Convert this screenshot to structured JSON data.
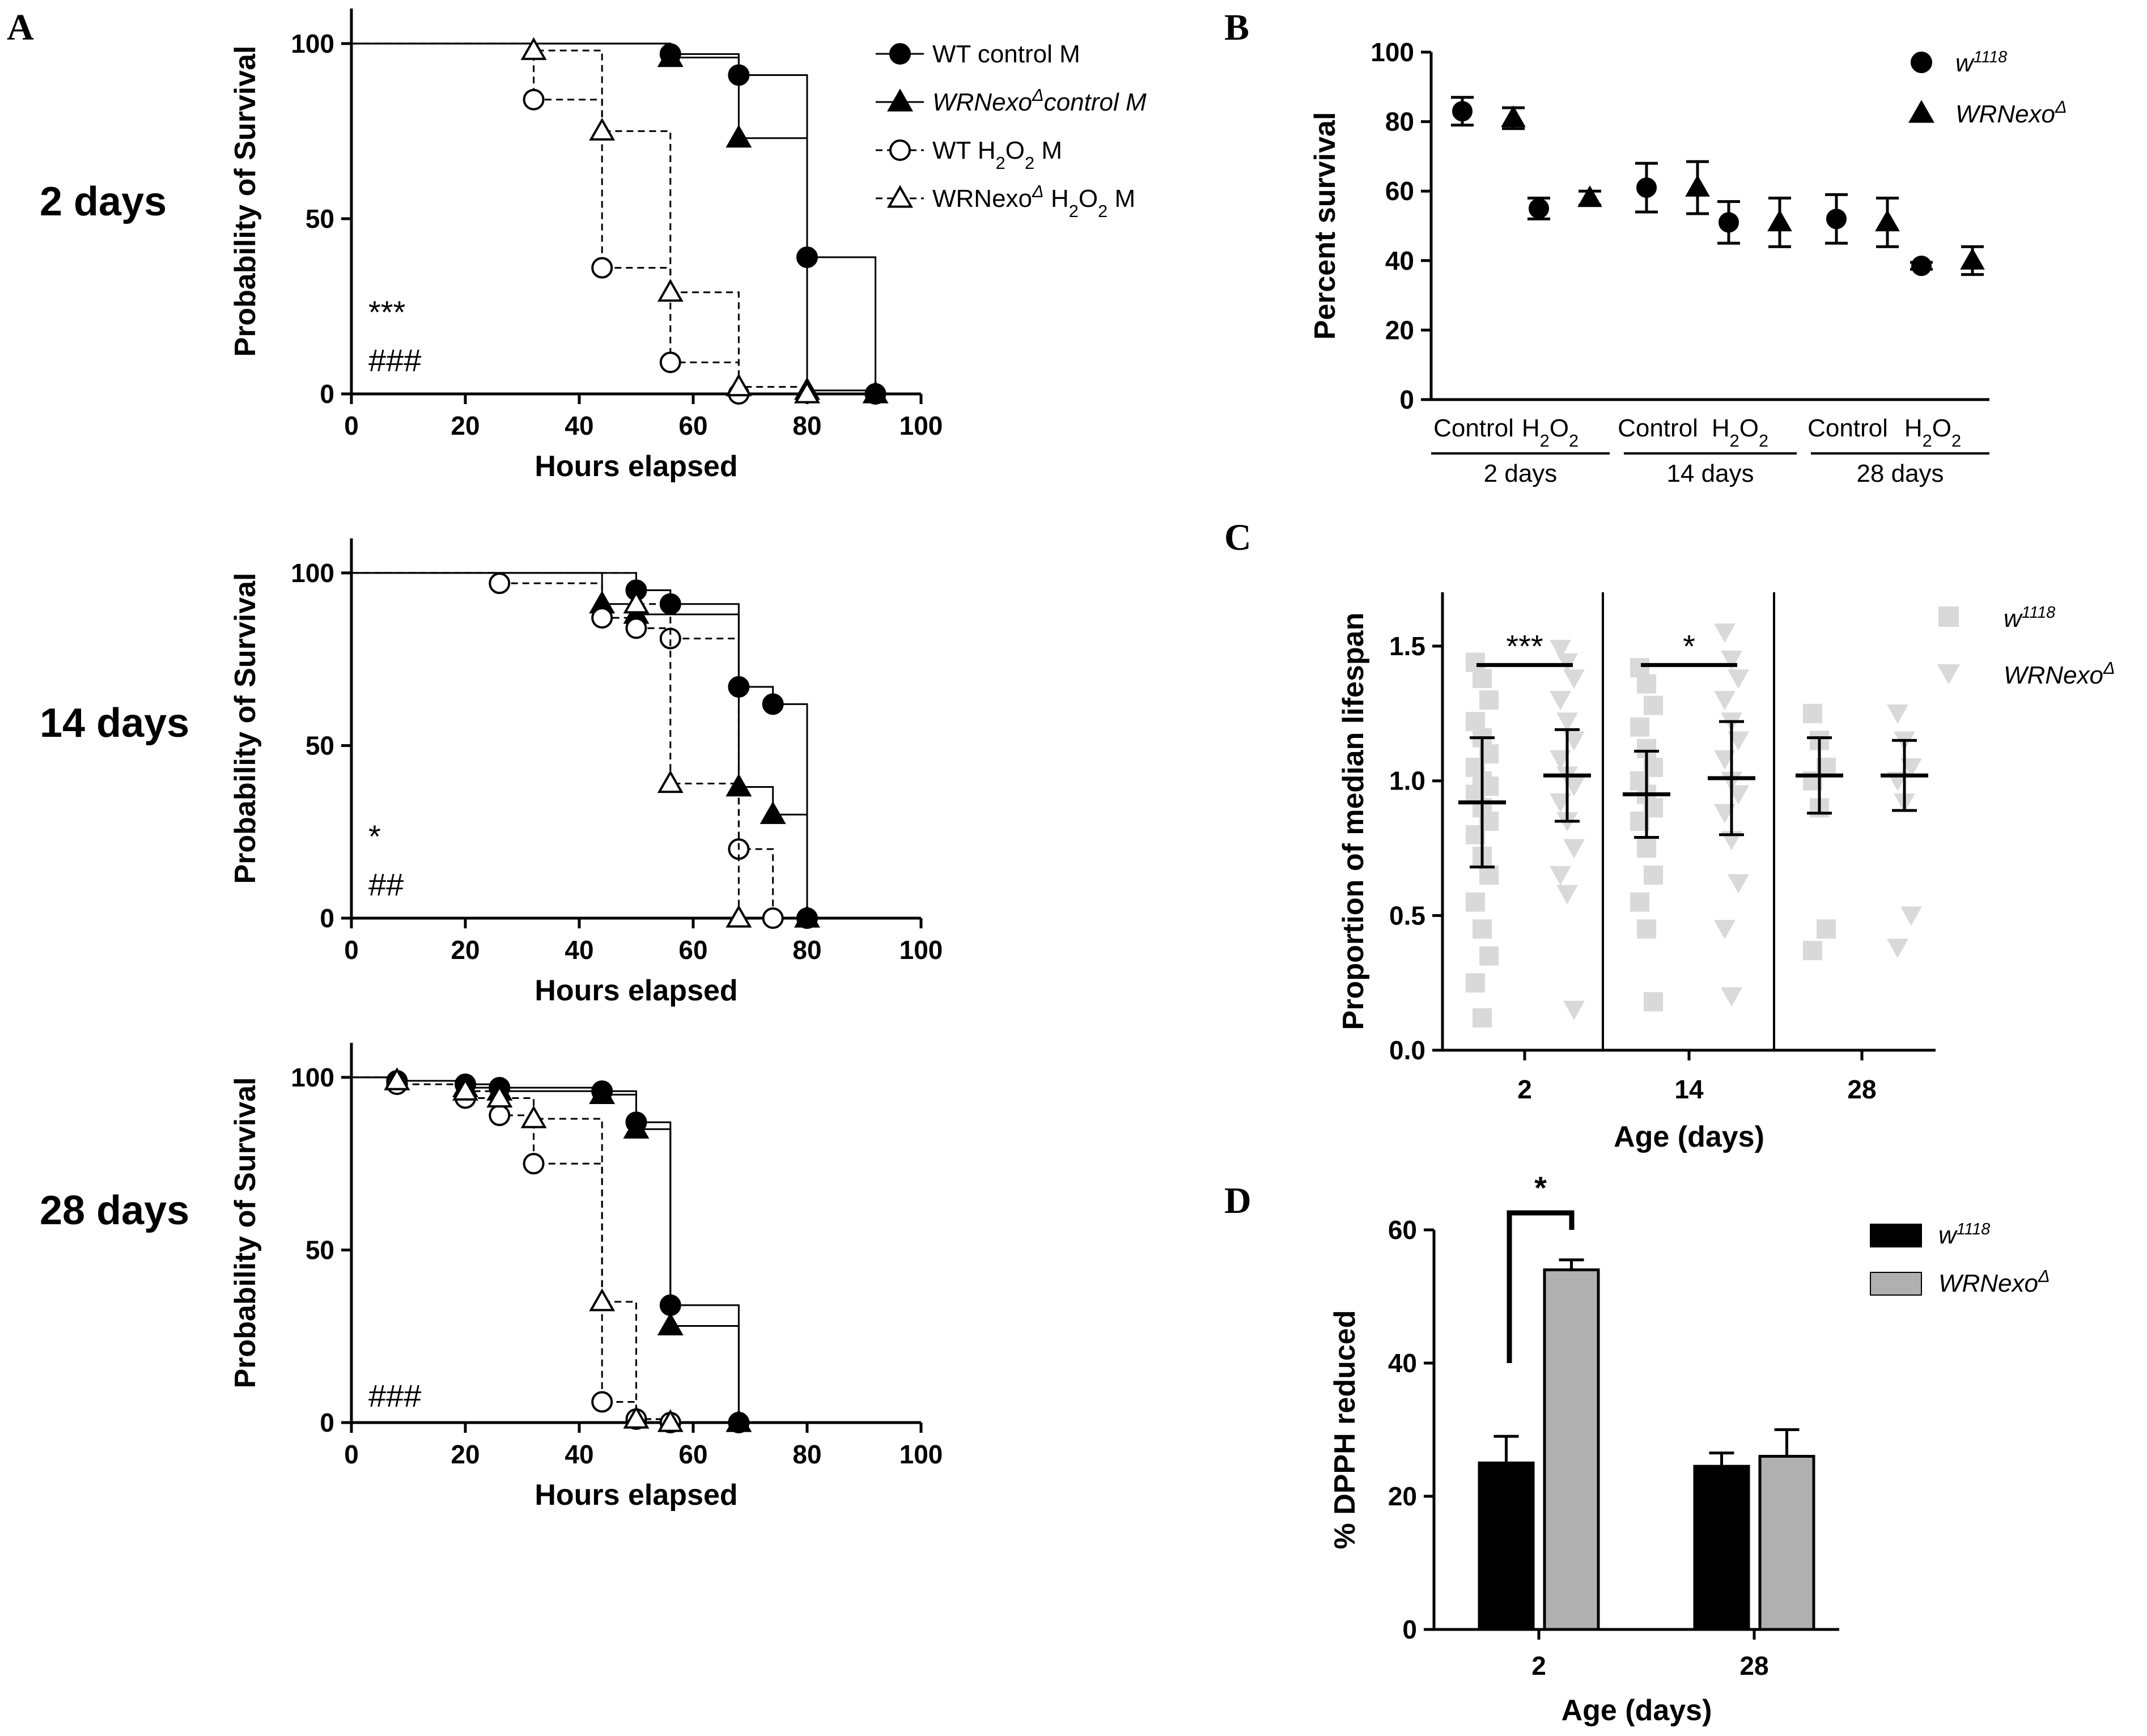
{
  "panel_a": {
    "panel_label": "A",
    "legend": [
      {
        "text": "WT control M",
        "marker": "circle-filled",
        "dashed": false
      },
      {
        "text": "WRNexoΔcontrol M",
        "marker": "triangle-filled",
        "dashed": false,
        "italic": true
      },
      {
        "text": "WT H2O2 M",
        "marker": "circle-open",
        "dashed": true
      },
      {
        "text": "WRNexoΔ H2O2 M",
        "marker": "triangle-open",
        "dashed": true
      }
    ],
    "charts": [
      {
        "row_label": "2 days",
        "chart_data": {
          "type": "line",
          "title": "",
          "xlabel": "Hours elapsed",
          "ylabel": "Probability of Survival",
          "xlim": [
            0,
            100
          ],
          "ylim": [
            0,
            110
          ],
          "xticks": [
            0,
            20,
            40,
            60,
            80,
            100
          ],
          "yticks": [
            0,
            50,
            100
          ],
          "annotations": [
            "***",
            "###"
          ],
          "series": [
            {
              "name": "WT control M",
              "x": [
                0,
                56,
                68,
                80,
                92
              ],
              "y": [
                100,
                97,
                91,
                39,
                0
              ]
            },
            {
              "name": "WRNexoΔcontrol M",
              "x": [
                0,
                56,
                68,
                80,
                92
              ],
              "y": [
                100,
                96,
                73,
                1,
                0
              ]
            },
            {
              "name": "WT H2O2 M",
              "x": [
                0,
                32,
                44,
                56,
                68
              ],
              "y": [
                100,
                84,
                36,
                9,
                0
              ]
            },
            {
              "name": "WRNexoΔ H2O2 M",
              "x": [
                0,
                32,
                44,
                56,
                68,
                80
              ],
              "y": [
                100,
                98,
                75,
                29,
                2,
                0
              ]
            }
          ]
        }
      },
      {
        "row_label": "14 days",
        "chart_data": {
          "type": "line",
          "title": "",
          "xlabel": "Hours elapsed",
          "ylabel": "Probability of Survival",
          "xlim": [
            0,
            100
          ],
          "ylim": [
            0,
            110
          ],
          "xticks": [
            0,
            20,
            40,
            60,
            80,
            100
          ],
          "yticks": [
            0,
            50,
            100
          ],
          "annotations": [
            "*",
            "##"
          ],
          "series": [
            {
              "name": "WT control M",
              "x": [
                0,
                50,
                56,
                68,
                74,
                80
              ],
              "y": [
                100,
                95,
                91,
                67,
                62,
                0
              ]
            },
            {
              "name": "WRNexoΔcontrol M",
              "x": [
                0,
                44,
                50,
                68,
                74,
                80
              ],
              "y": [
                100,
                91,
                88,
                38,
                30,
                0
              ]
            },
            {
              "name": "WT H2O2 M",
              "x": [
                0,
                26,
                44,
                50,
                56,
                68,
                74
              ],
              "y": [
                100,
                97,
                87,
                84,
                81,
                20,
                0
              ]
            },
            {
              "name": "WRNexoΔ H2O2 M",
              "x": [
                0,
                50,
                56,
                68
              ],
              "y": [
                100,
                91,
                39,
                0
              ]
            }
          ]
        }
      },
      {
        "row_label": "28 days",
        "chart_data": {
          "type": "line",
          "title": "",
          "xlabel": "Hours elapsed",
          "ylabel": "Probability of Survival",
          "xlim": [
            0,
            100
          ],
          "ylim": [
            0,
            110
          ],
          "xticks": [
            0,
            20,
            40,
            60,
            80,
            100
          ],
          "yticks": [
            0,
            50,
            100
          ],
          "annotations": [
            "###"
          ],
          "series": [
            {
              "name": "WT control M",
              "x": [
                0,
                8,
                20,
                26,
                44,
                50,
                56,
                68
              ],
              "y": [
                100,
                99,
                98,
                97,
                96,
                87,
                34,
                0
              ]
            },
            {
              "name": "WRNexoΔcontrol M",
              "x": [
                0,
                8,
                20,
                26,
                44,
                50,
                56,
                68
              ],
              "y": [
                100,
                99,
                97,
                96,
                95,
                85,
                28,
                0
              ]
            },
            {
              "name": "WT H2O2 M",
              "x": [
                0,
                8,
                20,
                26,
                32,
                44,
                50,
                56
              ],
              "y": [
                100,
                98,
                94,
                89,
                75,
                6,
                1,
                0
              ]
            },
            {
              "name": "WRNexoΔ H2O2 M",
              "x": [
                0,
                8,
                20,
                26,
                32,
                44,
                50,
                56
              ],
              "y": [
                100,
                99,
                96,
                94,
                88,
                35,
                1,
                0
              ]
            }
          ]
        }
      }
    ]
  },
  "panel_b": {
    "panel_label": "B",
    "chart_data": {
      "type": "scatter",
      "ylabel": "Percent survival",
      "ylim": [
        0,
        100
      ],
      "yticks": [
        0,
        20,
        40,
        60,
        80,
        100
      ],
      "conditions": [
        "Control",
        "H2O2",
        "Control",
        "H2O2",
        "Control",
        "H2O2"
      ],
      "groups": [
        "2 days",
        "14 days",
        "28 days"
      ],
      "legend": [
        "w1118",
        "WRNexoΔ"
      ],
      "series": [
        {
          "name": "w1118",
          "values": [
            83,
            55,
            61,
            51,
            52,
            38.5
          ],
          "error": [
            4,
            3,
            7,
            6,
            7,
            1
          ]
        },
        {
          "name": "WRNexoΔ",
          "values": [
            81,
            58,
            61,
            51,
            51,
            40
          ],
          "error": [
            3,
            2,
            7.5,
            7,
            7,
            4
          ]
        }
      ]
    }
  },
  "panel_c": {
    "panel_label": "C",
    "chart_data": {
      "type": "scatter",
      "xlabel": "Age (days)",
      "ylabel": "Proportion of median lifespan",
      "ylim": [
        0,
        1.7
      ],
      "yticks": [
        0.0,
        0.5,
        1.0,
        1.5
      ],
      "categories": [
        "2",
        "14",
        "28"
      ],
      "legend": [
        "w1118",
        "WRNexoΔ"
      ],
      "significance": [
        {
          "category": "2",
          "label": "***"
        },
        {
          "category": "14",
          "label": "*"
        }
      ],
      "series": [
        {
          "name": "w1118",
          "mean": [
            0.92,
            0.95,
            1.02
          ],
          "sd": [
            0.24,
            0.16,
            0.14
          ],
          "points": [
            [
              1.44,
              1.38,
              1.3,
              1.22,
              1.16,
              1.1,
              1.05,
              1.0,
              0.98,
              0.95,
              0.9,
              0.85,
              0.8,
              0.72,
              0.65,
              0.55,
              0.45,
              0.35,
              0.25,
              0.12
            ],
            [
              1.42,
              1.36,
              1.28,
              1.2,
              1.12,
              1.05,
              1.0,
              0.95,
              0.9,
              0.85,
              0.75,
              0.65,
              0.55,
              0.45,
              0.18
            ],
            [
              1.25,
              1.15,
              1.05,
              1.0,
              0.9,
              0.45,
              0.37
            ]
          ]
        },
        {
          "name": "WRNexoΔ",
          "mean": [
            1.02,
            1.01,
            1.02
          ],
          "sd": [
            0.17,
            0.21,
            0.13
          ],
          "points": [
            [
              1.49,
              1.44,
              1.38,
              1.3,
              1.22,
              1.15,
              1.08,
              1.02,
              0.98,
              0.92,
              0.85,
              0.75,
              0.65,
              0.58,
              0.15
            ],
            [
              1.55,
              1.45,
              1.38,
              1.3,
              1.22,
              1.15,
              1.08,
              1.0,
              0.95,
              0.88,
              0.78,
              0.62,
              0.45,
              0.2
            ],
            [
              1.25,
              1.15,
              1.05,
              1.0,
              0.92,
              0.5,
              0.38
            ]
          ]
        }
      ]
    }
  },
  "panel_d": {
    "panel_label": "D",
    "chart_data": {
      "type": "bar",
      "xlabel": "Age (days)",
      "ylabel": "% DPPH reduced",
      "ylim": [
        0,
        60
      ],
      "yticks": [
        0,
        20,
        40,
        60
      ],
      "categories": [
        "2",
        "28"
      ],
      "legend": [
        "w1118",
        "WRNexoΔ"
      ],
      "significance": [
        {
          "category": "2",
          "label": "*"
        }
      ],
      "series": [
        {
          "name": "w1118",
          "color": "#000000",
          "values": [
            25,
            24.5
          ],
          "error": [
            4,
            2
          ]
        },
        {
          "name": "WRNexoΔ",
          "color": "#b0b0b0",
          "values": [
            54,
            26
          ],
          "error": [
            1.5,
            4
          ]
        }
      ]
    }
  }
}
